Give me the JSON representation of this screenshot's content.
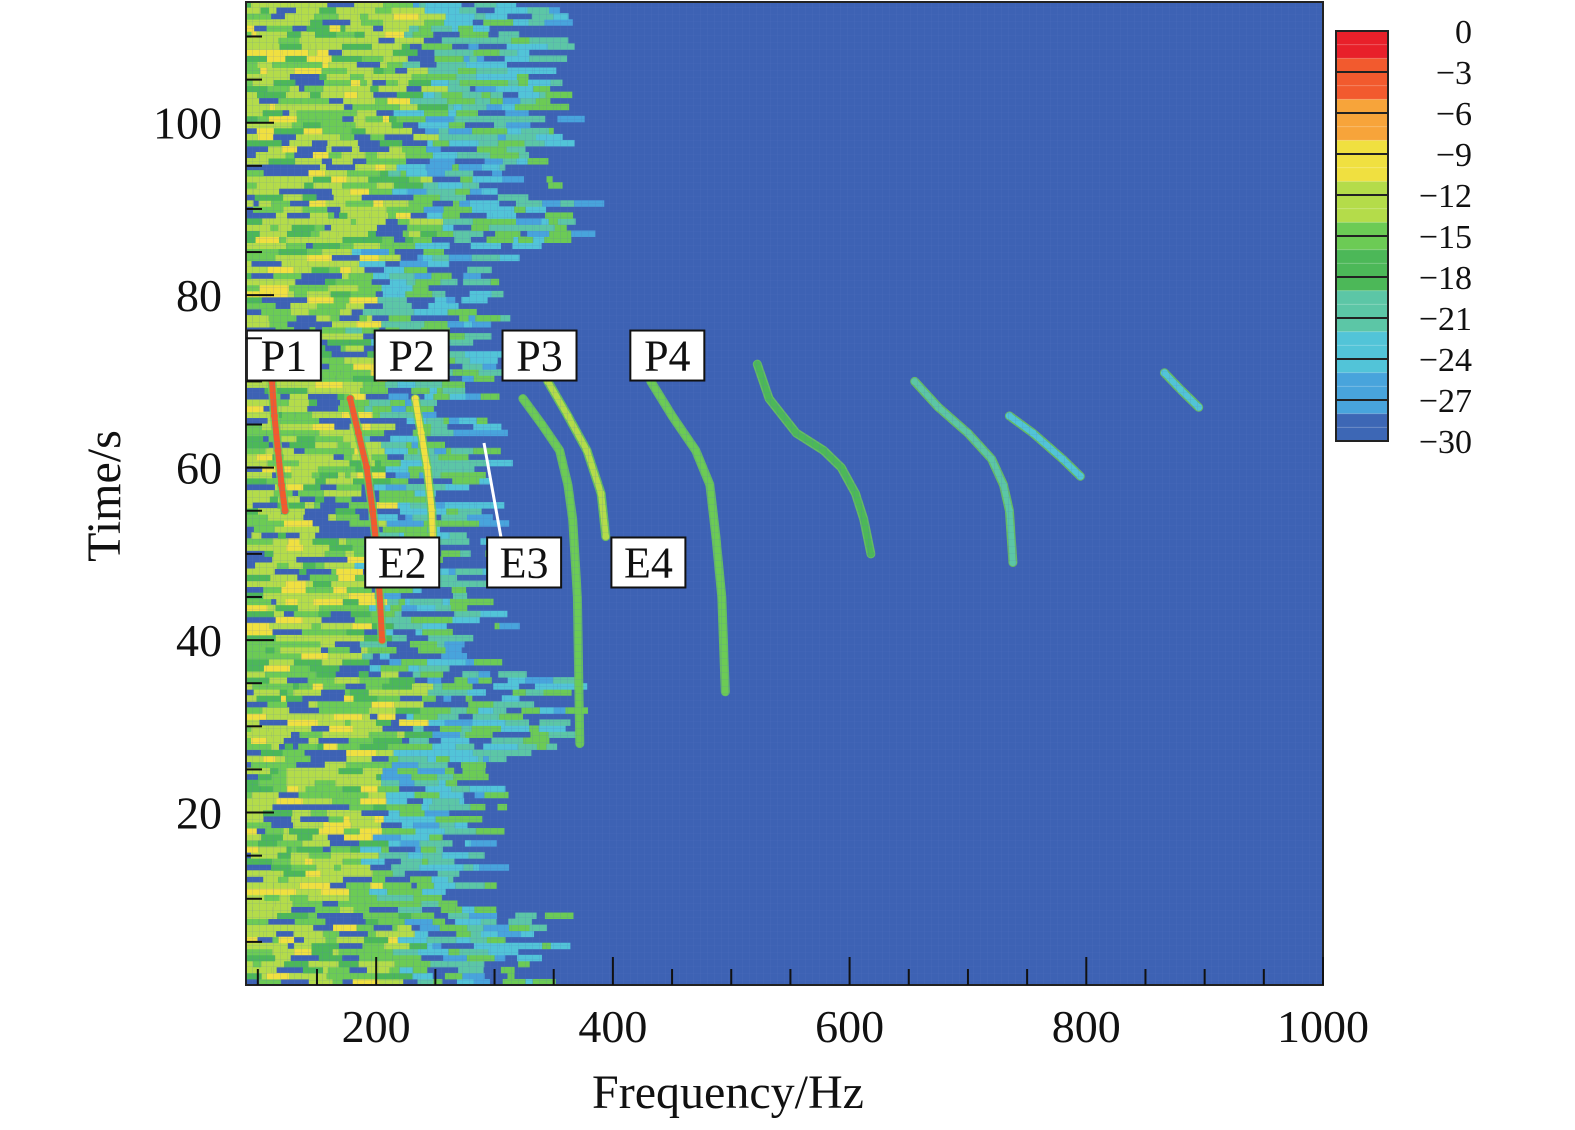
{
  "chart_data": {
    "type": "heatmap",
    "title": "",
    "xlabel": "Frequency/Hz",
    "ylabel": "Time/s",
    "xlim": [
      90,
      1000
    ],
    "ylim": [
      0,
      114
    ],
    "x_ticks": [
      200,
      400,
      600,
      800,
      1000
    ],
    "y_ticks": [
      20,
      40,
      60,
      80,
      100
    ],
    "colorbar": {
      "ticks": [
        0,
        -3,
        -6,
        -9,
        -12,
        -15,
        -18,
        -21,
        -24,
        -27,
        -30
      ],
      "tick_labels": [
        "0",
        "−3",
        "−6",
        "−9",
        "−12",
        "−15",
        "−18",
        "−21",
        "−24",
        "−27",
        "−30"
      ],
      "range": [
        -30,
        0
      ],
      "colors": [
        "#e8202a",
        "#f25a2e",
        "#f7a43a",
        "#f0e040",
        "#b4dc4a",
        "#6ccb55",
        "#4cb858",
        "#5cc6a6",
        "#52c4d8",
        "#48a4dc",
        "#3d67b5"
      ]
    },
    "background_level_db": -30,
    "background_color": "#3d62b4",
    "low_frequency_band": {
      "f_max": 270,
      "level_db": -15
    },
    "series": [
      {
        "label": "P1",
        "x": [
          112,
          114,
          117,
          120,
          123
        ],
        "y": [
          70,
          66,
          62,
          58,
          55
        ],
        "level_db": -2
      },
      {
        "label": "P2",
        "x": [
          178,
          185,
          192,
          197,
          201,
          205
        ],
        "y": [
          68,
          64,
          60,
          55,
          50,
          40
        ],
        "level_db": -4
      },
      {
        "label": "",
        "x": [
          233,
          238,
          243,
          247,
          249
        ],
        "y": [
          68,
          64,
          60,
          55,
          48
        ],
        "level_db": -10
      },
      {
        "label": "",
        "x": [
          324,
          340,
          355,
          362,
          366,
          370,
          372
        ],
        "y": [
          68,
          65,
          62,
          58,
          54,
          45,
          28
        ],
        "level_db": -14
      },
      {
        "label": "P3",
        "x": [
          345,
          362,
          378,
          390,
          394
        ],
        "y": [
          70,
          66,
          62,
          57,
          52
        ],
        "level_db": -12
      },
      {
        "label": "P4",
        "x": [
          432,
          450,
          470,
          482,
          487,
          492,
          495
        ],
        "y": [
          70,
          66,
          62,
          58,
          52,
          45,
          34
        ],
        "level_db": -16
      },
      {
        "label": "",
        "x": [
          522,
          532,
          555,
          578,
          593,
          605,
          612,
          618
        ],
        "y": [
          72,
          68,
          64,
          62,
          60,
          57,
          54,
          50
        ],
        "level_db": -18
      },
      {
        "label": "",
        "x": [
          655,
          675,
          700,
          720,
          730,
          735,
          738
        ],
        "y": [
          70,
          67,
          64,
          61,
          58,
          55,
          49
        ],
        "level_db": -22
      },
      {
        "label": "",
        "x": [
          735,
          755,
          780,
          795
        ],
        "y": [
          66,
          64,
          61,
          59
        ],
        "level_db": -24
      },
      {
        "label": "",
        "x": [
          866,
          880,
          895
        ],
        "y": [
          71,
          69,
          67
        ],
        "level_db": -24
      }
    ],
    "annotations": [
      {
        "text": "P1",
        "x": 122,
        "y": 73
      },
      {
        "text": "P2",
        "x": 230,
        "y": 73
      },
      {
        "text": "P3",
        "x": 338,
        "y": 73
      },
      {
        "text": "P4",
        "x": 446,
        "y": 73
      },
      {
        "text": "E2",
        "x": 222,
        "y": 49
      },
      {
        "text": "E3",
        "x": 325,
        "y": 49
      },
      {
        "text": "E4",
        "x": 430,
        "y": 49
      }
    ]
  }
}
